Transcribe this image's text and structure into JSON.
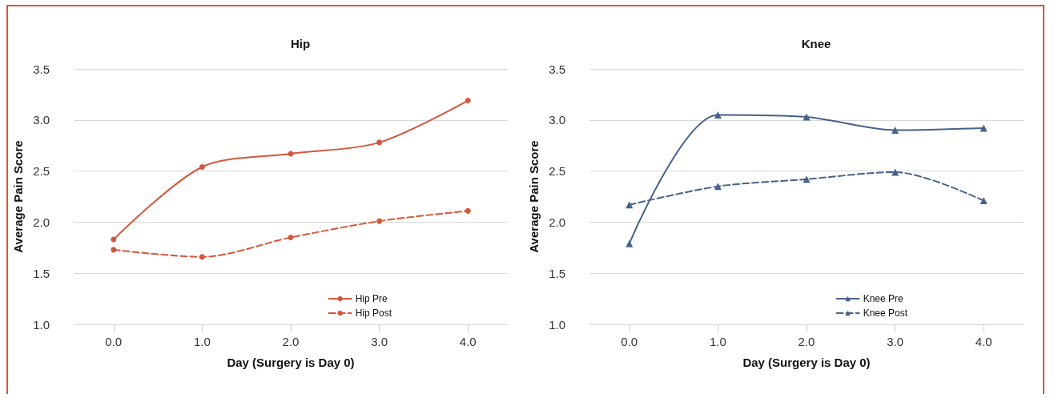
{
  "chart_data": [
    {
      "type": "line",
      "title": "Hip",
      "xlabel": "Day (Surgery is Day 0)",
      "ylabel": "Average Pain Score",
      "x": [
        0,
        1,
        2,
        3,
        4
      ],
      "xlim": [
        -0.45,
        4.45
      ],
      "xticks": [
        {
          "value": 0,
          "label": "0.0"
        },
        {
          "value": 1,
          "label": "1.0"
        },
        {
          "value": 2,
          "label": "2.0"
        },
        {
          "value": 3,
          "label": "3.0"
        },
        {
          "value": 4,
          "label": "4.0"
        }
      ],
      "ylim": [
        1,
        3.5
      ],
      "yticks": [
        {
          "value": 1,
          "label": "1.0"
        },
        {
          "value": 1.5,
          "label": "1.5"
        },
        {
          "value": 2,
          "label": "2.0"
        },
        {
          "value": 2.5,
          "label": "2.5"
        },
        {
          "value": 3,
          "label": "3.0"
        },
        {
          "value": 3.5,
          "label": "3.5"
        }
      ],
      "grid": "y",
      "legend": "bottom right",
      "marker": "circle",
      "series": [
        {
          "name": "Hip Pre",
          "color": "#d4573b",
          "line_style": "solid",
          "values": [
            1.83,
            2.54,
            2.67,
            2.78,
            3.19
          ]
        },
        {
          "name": "Hip Post",
          "color": "#d4573b",
          "line_style": "dashed",
          "values": [
            1.73,
            1.66,
            1.85,
            2.01,
            2.11
          ]
        }
      ]
    },
    {
      "type": "line",
      "title": "Knee",
      "xlabel": "Day (Surgery is Day 0)",
      "ylabel": "Average Pain Score",
      "x": [
        0,
        1,
        2,
        3,
        4
      ],
      "xlim": [
        -0.45,
        4.45
      ],
      "xticks": [
        {
          "value": 0,
          "label": "0.0"
        },
        {
          "value": 1,
          "label": "1.0"
        },
        {
          "value": 2,
          "label": "2.0"
        },
        {
          "value": 3,
          "label": "3.0"
        },
        {
          "value": 4,
          "label": "4.0"
        }
      ],
      "ylim": [
        1,
        3.5
      ],
      "yticks": [
        {
          "value": 1,
          "label": "1.0"
        },
        {
          "value": 1.5,
          "label": "1.5"
        },
        {
          "value": 2,
          "label": "2.0"
        },
        {
          "value": 2.5,
          "label": "2.5"
        },
        {
          "value": 3,
          "label": "3.0"
        },
        {
          "value": 3.5,
          "label": "3.5"
        }
      ],
      "grid": "y",
      "legend": "bottom right",
      "marker": "triangle",
      "series": [
        {
          "name": "Knee Pre",
          "color": "#45638a",
          "line_style": "solid",
          "values": [
            1.79,
            3.05,
            3.03,
            2.9,
            2.92
          ]
        },
        {
          "name": "Knee Post",
          "color": "#45638a",
          "line_style": "dashed",
          "values": [
            2.17,
            2.35,
            2.42,
            2.49,
            2.21
          ]
        }
      ]
    }
  ]
}
